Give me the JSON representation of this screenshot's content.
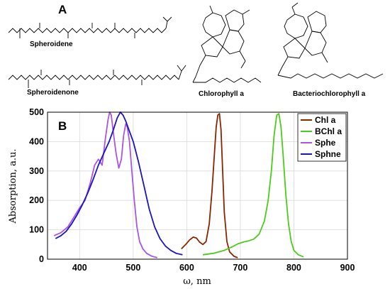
{
  "panel_a": {
    "label": "A",
    "molecules": [
      "Spheroidene",
      "Spheroidenone",
      "Chlorophyll a",
      "Bacteriochlorophyll a"
    ]
  },
  "panel_b": {
    "label": "B"
  },
  "chart_data": {
    "type": "line",
    "xlabel": "ω, nm",
    "ylabel": "Absorption, a.u.",
    "xlim": [
      340,
      900
    ],
    "ylim": [
      0,
      500
    ],
    "xticks": [
      400,
      500,
      600,
      700,
      800,
      900
    ],
    "yticks": [
      0,
      100,
      200,
      300,
      400,
      500
    ],
    "grid": true,
    "legend_position": "top-right",
    "series": [
      {
        "name": "Chl a",
        "color": "#8B2500",
        "x": [
          590,
          598,
          605,
          612,
          618,
          624,
          630,
          636,
          642,
          647,
          652,
          655,
          658,
          661,
          664,
          667,
          670,
          675,
          680,
          688,
          695
        ],
        "y": [
          35,
          50,
          65,
          75,
          72,
          58,
          50,
          60,
          120,
          230,
          370,
          450,
          490,
          495,
          440,
          300,
          160,
          60,
          25,
          10,
          5
        ]
      },
      {
        "name": "BChl a",
        "color": "#4CCC1A",
        "x": [
          630,
          650,
          670,
          685,
          695,
          705,
          715,
          725,
          735,
          745,
          752,
          758,
          763,
          768,
          772,
          776,
          780,
          785,
          790,
          795,
          800,
          808,
          818
        ],
        "y": [
          15,
          20,
          30,
          42,
          52,
          58,
          62,
          68,
          85,
          130,
          200,
          300,
          420,
          490,
          495,
          450,
          350,
          220,
          120,
          60,
          30,
          15,
          8
        ]
      },
      {
        "name": "Sphe",
        "color": "#A855E8",
        "x": [
          352,
          365,
          378,
          390,
          400,
          410,
          420,
          428,
          435,
          442,
          448,
          453,
          456,
          459,
          463,
          468,
          473,
          478,
          482,
          486,
          489,
          493,
          497,
          502,
          507,
          512,
          518,
          525,
          535,
          545
        ],
        "y": [
          80,
          90,
          110,
          145,
          175,
          200,
          260,
          320,
          340,
          320,
          410,
          475,
          500,
          490,
          430,
          360,
          310,
          340,
          420,
          460,
          450,
          400,
          310,
          200,
          110,
          60,
          35,
          20,
          10,
          5
        ]
      },
      {
        "name": "Sphne",
        "color": "#1B14C4",
        "x": [
          355,
          365,
          375,
          385,
          395,
          405,
          415,
          425,
          435,
          445,
          455,
          463,
          470,
          476,
          481,
          486,
          492,
          500,
          510,
          520,
          530,
          540,
          550,
          560,
          570,
          580,
          592
        ],
        "y": [
          70,
          80,
          95,
          120,
          150,
          185,
          225,
          270,
          320,
          360,
          400,
          440,
          480,
          500,
          490,
          470,
          440,
          400,
          330,
          250,
          170,
          110,
          70,
          45,
          30,
          20,
          15
        ]
      }
    ]
  }
}
